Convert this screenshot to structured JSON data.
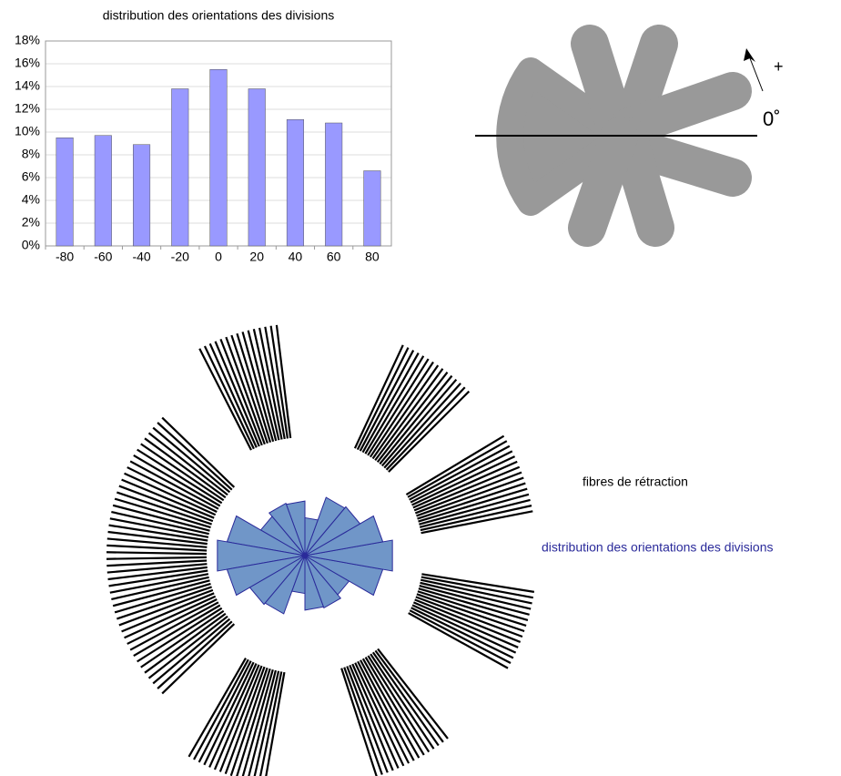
{
  "chart_data": {
    "type": "bar",
    "title": "distribution des orientations des divisions",
    "categories": [
      -80,
      -60,
      -40,
      -20,
      0,
      20,
      40,
      60,
      80
    ],
    "values": [
      9.5,
      9.7,
      8.9,
      13.8,
      15.5,
      13.8,
      11.1,
      10.8,
      6.6
    ],
    "color": "#9999ff",
    "ylim": [
      0,
      18
    ],
    "yticks": [
      {
        "value": 0,
        "label": "0%"
      },
      {
        "value": 2,
        "label": "2%"
      },
      {
        "value": 4,
        "label": "4%"
      },
      {
        "value": 6,
        "label": "6%"
      },
      {
        "value": 8,
        "label": "8%"
      },
      {
        "value": 10,
        "label": "10%"
      },
      {
        "value": 12,
        "label": "12%"
      },
      {
        "value": 14,
        "label": "14%"
      },
      {
        "value": 16,
        "label": "16%"
      },
      {
        "value": 18,
        "label": "18%"
      }
    ],
    "grid": true
  },
  "diagram": {
    "plus": "+",
    "zero": "0˚"
  },
  "rose": {
    "fibers_label": "fibres de rétraction",
    "distribution_label": "distribution des orientations des divisions",
    "fill": "#7096c8",
    "stroke": "#2a2a9a"
  }
}
